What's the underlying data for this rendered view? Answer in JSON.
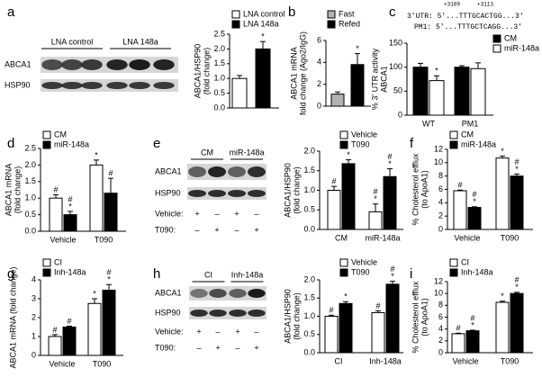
{
  "chart_data": [
    {
      "panel": "a",
      "type": "bar",
      "ylabel": [
        "ABCA1/HSP90",
        "(fold change)"
      ],
      "ylim": [
        0,
        2.5
      ],
      "yticks": [
        {
          "value": 0,
          "label": "0.0"
        },
        0.5,
        {
          "value": 1,
          "label": "1.0"
        },
        1.5,
        {
          "value": 2,
          "label": "2.0"
        },
        2.5
      ],
      "legend": "top",
      "series": [
        {
          "name": "LNA control",
          "color": "#ffffff",
          "values": [
            1.0
          ],
          "errors": [
            0.1
          ],
          "notes": [
            null
          ]
        },
        {
          "name": "LNA 148a",
          "color": "#000000",
          "values": [
            2.0
          ],
          "errors": [
            0.25
          ],
          "notes": [
            [
              "*"
            ]
          ]
        }
      ]
    },
    {
      "panel": "b",
      "type": "bar",
      "ylabel": [
        "ABCA1 mRNA",
        "fold change (Ago2/IgG)"
      ],
      "ylim": [
        0,
        6
      ],
      "yticks": [
        0,
        2,
        4,
        6
      ],
      "legend": "top",
      "series": [
        {
          "name": "Fast",
          "color": "#b3b3b3",
          "values": [
            1.1
          ],
          "errors": [
            0.2
          ],
          "notes": [
            null
          ]
        },
        {
          "name": "Refed",
          "color": "#000000",
          "values": [
            3.8
          ],
          "errors": [
            1.0
          ],
          "notes": [
            [
              "*"
            ]
          ]
        }
      ]
    },
    {
      "panel": "c",
      "type": "bar",
      "ylabel": [
        "% 3' UTR activity",
        "ABCA1"
      ],
      "ylim": [
        0,
        150
      ],
      "yticks": [
        0,
        50,
        100,
        150
      ],
      "legend": "right",
      "categories": [
        "WT",
        "PM1"
      ],
      "series": [
        {
          "name": "CM",
          "color": "#000000",
          "values": [
            100,
            100
          ],
          "errors": [
            8,
            3
          ],
          "notes": [
            null,
            null
          ]
        },
        {
          "name": "miR-148a",
          "color": "#ffffff",
          "values": [
            72,
            97
          ],
          "errors": [
            10,
            12
          ],
          "notes": [
            [
              "*"
            ],
            null
          ]
        }
      ]
    },
    {
      "panel": "d",
      "type": "bar",
      "ylabel": [
        "ABCA1 mRNA",
        "(fold change)"
      ],
      "ylim": [
        0,
        2.5
      ],
      "yticks": [
        {
          "value": 0,
          "label": "0.0"
        },
        0.5,
        {
          "value": 1,
          "label": "1.0"
        },
        1.5,
        {
          "value": 2,
          "label": "2.0"
        },
        2.5
      ],
      "legend": "top",
      "categories": [
        "Vehicle",
        "T090"
      ],
      "series": [
        {
          "name": "CM",
          "color": "#ffffff",
          "values": [
            1.0,
            2.0
          ],
          "errors": [
            0.1,
            0.15
          ],
          "notes": [
            [
              "#"
            ],
            [
              "*"
            ]
          ]
        },
        {
          "name": "miR-148a",
          "color": "#000000",
          "values": [
            0.5,
            1.15
          ],
          "errors": [
            0.1,
            0.45
          ],
          "notes": [
            [
              "#",
              "*"
            ],
            [
              "#"
            ]
          ]
        }
      ]
    },
    {
      "panel": "e",
      "type": "bar",
      "ylabel": [
        "ABCA1/HSP90",
        "(fold change)"
      ],
      "ylim": [
        0,
        2
      ],
      "yticks": [
        {
          "value": 0,
          "label": "0.0"
        },
        0.5,
        {
          "value": 1,
          "label": "1.0"
        },
        1.5,
        {
          "value": 2,
          "label": "2.0"
        }
      ],
      "legend": "top",
      "categories": [
        "CM",
        "miR-148a"
      ],
      "series": [
        {
          "name": "Vehicle",
          "color": "#ffffff",
          "values": [
            1.0,
            0.45
          ],
          "errors": [
            0.1,
            0.2
          ],
          "notes": [
            [
              "#"
            ],
            [
              "#",
              "*"
            ]
          ]
        },
        {
          "name": "T090",
          "color": "#000000",
          "values": [
            1.68,
            1.35
          ],
          "errors": [
            0.1,
            0.2
          ],
          "notes": [
            [
              "*"
            ],
            [
              "#",
              "*"
            ]
          ]
        }
      ]
    },
    {
      "panel": "f",
      "type": "bar",
      "ylabel": [
        "% Cholesterol efflux",
        "(to ApoA1)"
      ],
      "ylim": [
        0,
        12
      ],
      "yticks": [
        0,
        2,
        4,
        6,
        8,
        10,
        12
      ],
      "legend": "top",
      "categories": [
        "Vehicle",
        "T090"
      ],
      "series": [
        {
          "name": "CM",
          "color": "#ffffff",
          "values": [
            5.8,
            10.7
          ],
          "errors": [
            0.1,
            0.3
          ],
          "notes": [
            [
              "#"
            ],
            [
              "*"
            ]
          ]
        },
        {
          "name": "miR-148a",
          "color": "#000000",
          "values": [
            3.3,
            8.0
          ],
          "errors": [
            0.1,
            0.3
          ],
          "notes": [
            [
              "#",
              "*"
            ],
            [
              "#",
              "*"
            ]
          ]
        }
      ]
    },
    {
      "panel": "g",
      "type": "bar",
      "ylabel": [
        "ABCA1 mRNA (fold change)"
      ],
      "ylim": [
        0,
        4
      ],
      "yticks": [
        0,
        1,
        2,
        3,
        4
      ],
      "legend": "top",
      "categories": [
        "Vehicle",
        "T090"
      ],
      "series": [
        {
          "name": "CI",
          "color": "#ffffff",
          "values": [
            1.0,
            2.75
          ],
          "errors": [
            0.1,
            0.25
          ],
          "notes": [
            [
              "#"
            ],
            [
              "*"
            ]
          ]
        },
        {
          "name": "Inh-148a",
          "color": "#000000",
          "values": [
            1.5,
            3.45
          ],
          "errors": [
            0.05,
            0.3
          ],
          "notes": [
            [
              "#"
            ],
            [
              "#",
              "*"
            ]
          ]
        }
      ]
    },
    {
      "panel": "h",
      "type": "bar",
      "ylabel": [
        "ABCA1/HSP90",
        "(fold change)"
      ],
      "ylim": [
        0,
        2
      ],
      "yticks": [
        {
          "value": 0,
          "label": "0.0"
        },
        0.5,
        {
          "value": 1,
          "label": "1.0"
        },
        1.5,
        {
          "value": 2,
          "label": "2.0"
        }
      ],
      "legend": "top",
      "categories": [
        "CI",
        "Inh-148a"
      ],
      "series": [
        {
          "name": "Vehicle",
          "color": "#ffffff",
          "values": [
            1.0,
            1.1
          ],
          "errors": [
            0.03,
            0.05
          ],
          "notes": [
            [
              "#"
            ],
            [
              "#"
            ]
          ]
        },
        {
          "name": "T090",
          "color": "#000000",
          "values": [
            1.35,
            1.88
          ],
          "errors": [
            0.05,
            0.08
          ],
          "notes": [
            [
              "*"
            ],
            [
              "#",
              "*"
            ]
          ]
        }
      ]
    },
    {
      "panel": "i",
      "type": "bar",
      "ylabel": [
        "% Cholesterol efflux",
        "(to ApoA1)"
      ],
      "ylim": [
        0,
        12
      ],
      "yticks": [
        0,
        2,
        4,
        6,
        8,
        10,
        12
      ],
      "legend": "top",
      "categories": [
        "Vehicle",
        "T090"
      ],
      "series": [
        {
          "name": "CI",
          "color": "#ffffff",
          "values": [
            3.2,
            8.5
          ],
          "errors": [
            0.1,
            0.2
          ],
          "notes": [
            [
              "#"
            ],
            [
              "*"
            ]
          ]
        },
        {
          "name": "Inh-148a",
          "color": "#000000",
          "values": [
            3.7,
            10.0
          ],
          "errors": [
            0.1,
            0.2
          ],
          "notes": [
            [
              "#",
              "*"
            ],
            [
              "#",
              "*"
            ]
          ]
        }
      ]
    }
  ],
  "sequences": {
    "positions": [
      "+3109",
      "+3113"
    ],
    "lines": [
      "3'UTR: 5'...TTTGCACTGG...3'",
      "PM1: 5'...TTTGCTCAGG...3'"
    ]
  },
  "blots": {
    "a": {
      "groups": [
        "LNA control",
        "LNA 148a"
      ],
      "rows": [
        "ABCA1",
        "HSP90"
      ]
    },
    "e": {
      "groups": [
        "CM",
        "miR-148a"
      ],
      "rows": [
        "ABCA1",
        "HSP90"
      ],
      "treatments": [
        {
          "name": "Vehicle:",
          "signs": [
            "+",
            "–",
            "+",
            "–"
          ]
        },
        {
          "name": "T090:",
          "signs": [
            "–",
            "+",
            "–",
            "+"
          ]
        }
      ]
    },
    "h": {
      "groups": [
        "CI",
        "Inh-148a"
      ],
      "rows": [
        "ABCA1",
        "HSP90"
      ],
      "treatments": [
        {
          "name": "Vehicle:",
          "signs": [
            "+",
            "–",
            "+",
            "–"
          ]
        },
        {
          "name": "T090:",
          "signs": [
            "–",
            "+",
            "–",
            "+"
          ]
        }
      ]
    }
  }
}
